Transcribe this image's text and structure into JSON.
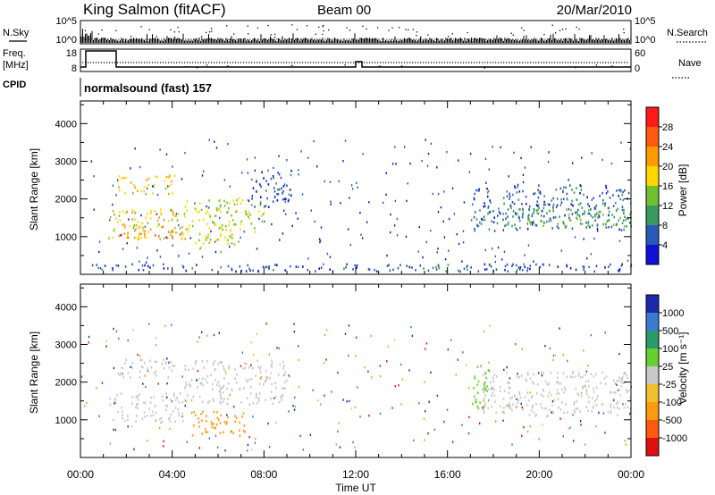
{
  "header": {
    "station": "King Salmon (fitACF)",
    "beam": "Beam 00",
    "date": "20/Mar/2010"
  },
  "panels": {
    "nsky": {
      "label": "N.Sky",
      "ticks": [
        "10^5",
        "10^0"
      ],
      "right_label": "N.Search",
      "right_ticks": [
        "10^5",
        "10^0"
      ]
    },
    "freq": {
      "label": "Freq.",
      "unit": "[MHz]",
      "ticks": [
        "18",
        "8"
      ],
      "right_label": "Nave",
      "right_ticks": [
        "60",
        "0"
      ]
    },
    "cpid": {
      "label": "CPID",
      "text": "normalsound (fast) 157"
    }
  },
  "colorbars": {
    "power": {
      "label": "Power [dB]",
      "ticks": [
        "28",
        "24",
        "20",
        "16",
        "12",
        "8",
        "4"
      ],
      "colors": [
        "#ff1a1a",
        "#ff5a10",
        "#ff9a00",
        "#ffd800",
        "#70c030",
        "#3a9a60",
        "#2858b8",
        "#1010d8"
      ]
    },
    "velocity": {
      "label": "Velocity [m s⁻¹]",
      "ticks": [
        "1000",
        "500",
        "100",
        "25",
        "-25",
        "-100",
        "-500",
        "-1000"
      ],
      "colors": [
        "#1a2aa8",
        "#3c7ad0",
        "#2a9a6a",
        "#66d030",
        "#c8c8c8",
        "#f0c030",
        "#ff9a10",
        "#ff5a10",
        "#e01010"
      ]
    }
  },
  "chart_data": [
    {
      "type": "heatmap",
      "title": "",
      "ylabel": "Slant Range [km]",
      "xlabel": "Time UT",
      "xlim": [
        "00:00",
        "24:00"
      ],
      "ylim": [
        0,
        4600
      ],
      "x_ticks": [
        "00:00",
        "04:00",
        "08:00",
        "12:00",
        "16:00",
        "20:00",
        "00:00"
      ],
      "y_ticks": [
        "1000",
        "2000",
        "3000",
        "4000"
      ],
      "regions": [
        {
          "t": [
            1.6,
            4.1
          ],
          "r": [
            2150,
            2650
          ],
          "power": 18
        },
        {
          "t": [
            1.2,
            4.5
          ],
          "r": [
            950,
            1750
          ],
          "power": 18
        },
        {
          "t": [
            1.6,
            4.8
          ],
          "r": [
            950,
            1300
          ],
          "power": 22
        },
        {
          "t": [
            4.5,
            8.0
          ],
          "r": [
            1150,
            2050
          ],
          "power": 16
        },
        {
          "t": [
            5.0,
            7.0
          ],
          "r": [
            600,
            1100
          ],
          "power": 17
        },
        {
          "t": [
            7.5,
            9.2
          ],
          "r": [
            1800,
            2800
          ],
          "power": 6
        },
        {
          "t": [
            17.0,
            24.0
          ],
          "r": [
            1200,
            2400
          ],
          "power": 7
        },
        {
          "t": [
            19.0,
            24.0
          ],
          "r": [
            1300,
            1800
          ],
          "power": 12
        },
        {
          "t": [
            0.3,
            24.0
          ],
          "r": [
            100,
            300
          ],
          "power": 5
        }
      ],
      "colorbar": "Power [dB]"
    },
    {
      "type": "heatmap",
      "title": "",
      "ylabel": "Slant Range [km]",
      "xlabel": "Time UT",
      "xlim": [
        "00:00",
        "24:00"
      ],
      "ylim": [
        0,
        4600
      ],
      "x_ticks": [
        "00:00",
        "04:00",
        "08:00",
        "12:00",
        "16:00",
        "20:00",
        "00:00"
      ],
      "y_ticks": [
        "1000",
        "2000",
        "3000",
        "4000"
      ],
      "regions": [
        {
          "t": [
            1.6,
            4.1
          ],
          "r": [
            2150,
            2650
          ],
          "velocity": 0
        },
        {
          "t": [
            1.2,
            4.5
          ],
          "r": [
            950,
            1750
          ],
          "velocity": 0
        },
        {
          "t": [
            4.5,
            9.0
          ],
          "r": [
            1400,
            2600
          ],
          "velocity": 0
        },
        {
          "t": [
            4.8,
            7.2
          ],
          "r": [
            600,
            1300
          ],
          "velocity": -300
        },
        {
          "t": [
            17.0,
            17.8
          ],
          "r": [
            1300,
            2500
          ],
          "velocity": 60
        },
        {
          "t": [
            17.5,
            24.0
          ],
          "r": [
            1100,
            2300
          ],
          "velocity": 0
        }
      ],
      "colorbar": "Velocity [m s⁻¹]"
    }
  ]
}
